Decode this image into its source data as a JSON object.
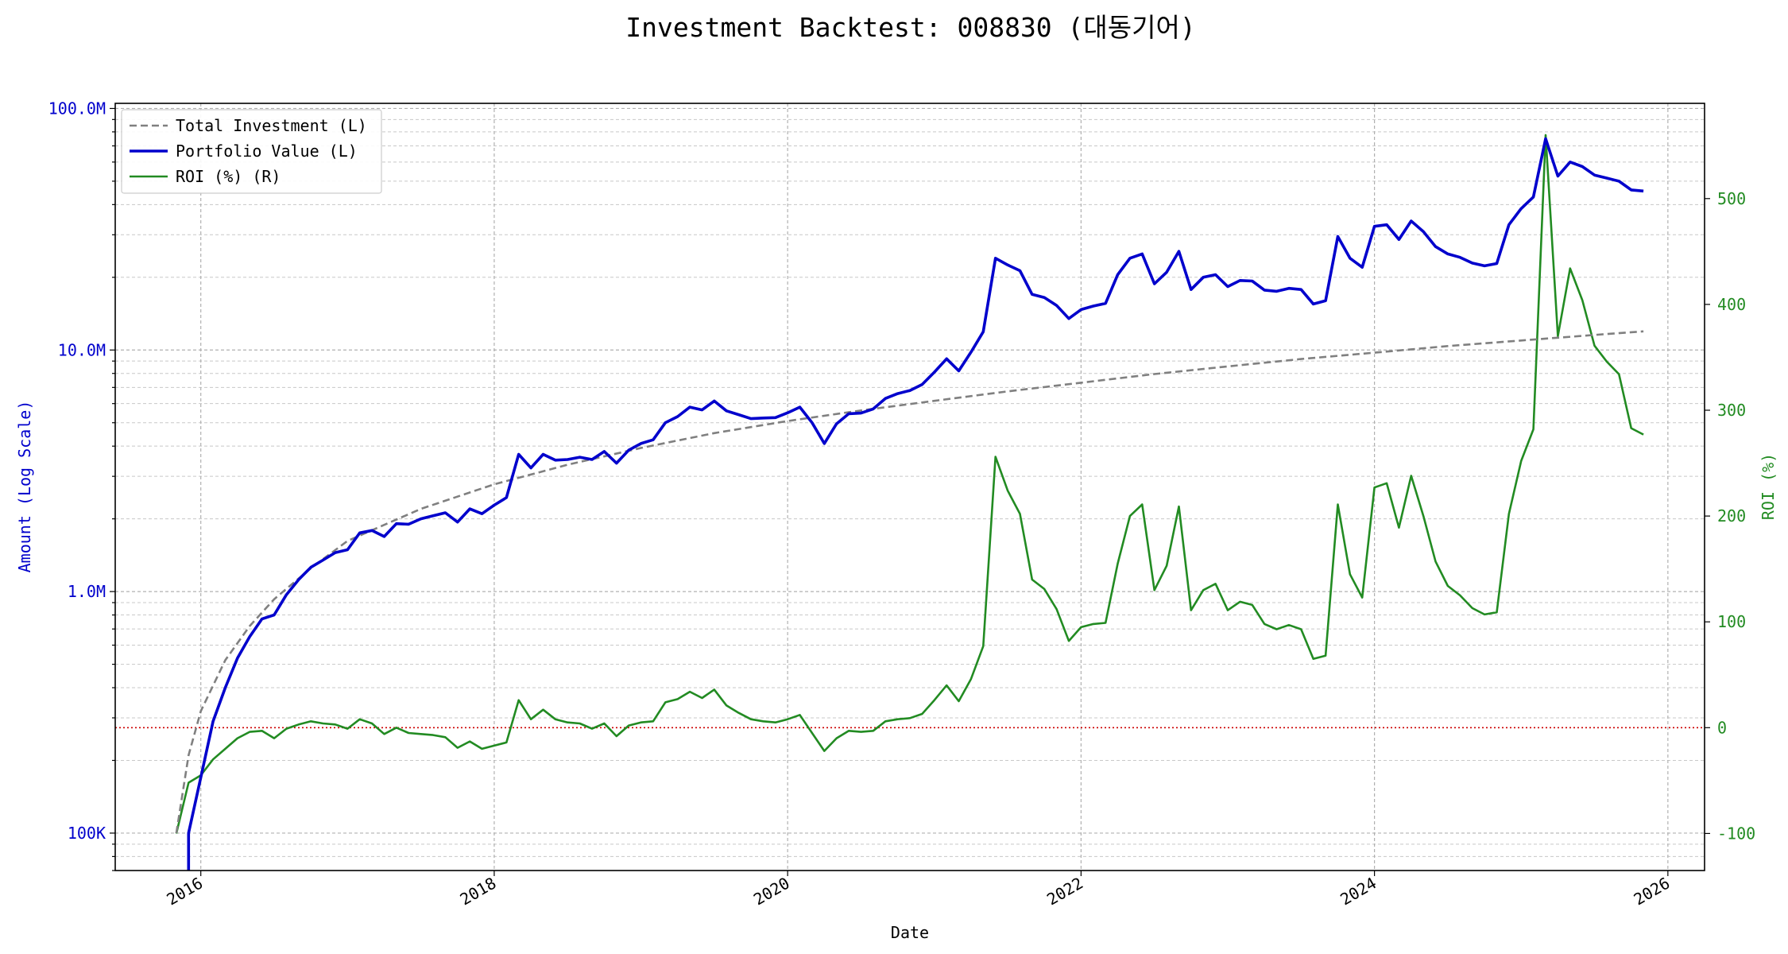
{
  "title": "Investment Backtest: 008830 (대동기어)",
  "chart_data": {
    "type": "line",
    "title": "Investment Backtest: 008830 (대동기어)",
    "xlabel": "Date",
    "ylabel_left": "Amount (Log Scale)",
    "ylabel_right": "ROI (%)",
    "y_left_scale": "log",
    "y_left_lim": [
      70000,
      105000000
    ],
    "y_left_ticks": [
      {
        "value": 100000,
        "label": "100K"
      },
      {
        "value": 1000000,
        "label": "1.0M"
      },
      {
        "value": 10000000,
        "label": "10.0M"
      },
      {
        "value": 100000000,
        "label": "100.0M"
      }
    ],
    "y_right_lim": [
      -135,
      590
    ],
    "y_right_ticks": [
      -100,
      0,
      100,
      200,
      300,
      400,
      500
    ],
    "x_lim": [
      "2015-06-01",
      "2026-04-01"
    ],
    "x_ticks": [
      {
        "value": "2016-01-01",
        "label": "2016"
      },
      {
        "value": "2018-01-01",
        "label": "2018"
      },
      {
        "value": "2020-01-01",
        "label": "2020"
      },
      {
        "value": "2022-01-01",
        "label": "2022"
      },
      {
        "value": "2024-01-01",
        "label": "2024"
      },
      {
        "value": "2026-01-01",
        "label": "2026"
      }
    ],
    "grid": true,
    "legend_position": "upper-left",
    "zero_line": {
      "value": 0,
      "axis": "right",
      "color": "#cc0000",
      "style": "dotted"
    },
    "series": [
      {
        "name": "Total Investment (L)",
        "axis": "left",
        "color": "#808080",
        "style": "dashed",
        "x": [
          "2015-11-01",
          "2015-12-01",
          "2016-01-01",
          "2016-03-01",
          "2016-05-01",
          "2016-07-01",
          "2016-10-01",
          "2017-01-01",
          "2017-07-01",
          "2018-01-01",
          "2018-07-01",
          "2019-01-01",
          "2019-07-01",
          "2020-01-01",
          "2020-07-01",
          "2021-01-01",
          "2021-07-01",
          "2022-01-01",
          "2022-07-01",
          "2023-01-01",
          "2023-07-01",
          "2024-01-01",
          "2024-07-01",
          "2025-01-01",
          "2025-07-01",
          "2025-11-01"
        ],
        "values": [
          100000,
          210000,
          320000,
          520000,
          720000,
          930000,
          1250000,
          1620000,
          2200000,
          2780000,
          3350000,
          3930000,
          4530000,
          5080000,
          5620000,
          6160000,
          6740000,
          7320000,
          7950000,
          8550000,
          9180000,
          9750000,
          10380000,
          10950000,
          11550000,
          11950000
        ]
      },
      {
        "name": "Portfolio Value (L)",
        "axis": "left",
        "color": "#0000cc",
        "style": "solid",
        "x": [
          "2015-12-01",
          "2015-12-01",
          "2016-01-01",
          "2016-02-01",
          "2016-03-01",
          "2016-04-01",
          "2016-05-01",
          "2016-06-01",
          "2016-07-01",
          "2016-08-01",
          "2016-09-01",
          "2016-10-01",
          "2016-11-01",
          "2016-12-01",
          "2017-01-01",
          "2017-02-01",
          "2017-03-01",
          "2017-04-01",
          "2017-05-01",
          "2017-06-01",
          "2017-07-01",
          "2017-08-01",
          "2017-09-01",
          "2017-10-01",
          "2017-11-01",
          "2017-12-01",
          "2018-01-01",
          "2018-02-01",
          "2018-03-01",
          "2018-04-01",
          "2018-05-01",
          "2018-06-01",
          "2018-07-01",
          "2018-08-01",
          "2018-09-01",
          "2018-10-01",
          "2018-11-01",
          "2018-12-01",
          "2019-01-01",
          "2019-02-01",
          "2019-03-01",
          "2019-04-01",
          "2019-05-01",
          "2019-06-01",
          "2019-07-01",
          "2019-08-01",
          "2019-09-01",
          "2019-10-01",
          "2019-11-01",
          "2019-12-01",
          "2020-01-01",
          "2020-02-01",
          "2020-03-01",
          "2020-04-01",
          "2020-05-01",
          "2020-06-01",
          "2020-07-01",
          "2020-08-01",
          "2020-09-01",
          "2020-10-01",
          "2020-11-01",
          "2020-12-01",
          "2021-01-01",
          "2021-02-01",
          "2021-03-01",
          "2021-04-01",
          "2021-05-01",
          "2021-06-01",
          "2021-07-01",
          "2021-08-01",
          "2021-09-01",
          "2021-10-01",
          "2021-11-01",
          "2021-12-01",
          "2022-01-01",
          "2022-02-01",
          "2022-03-01",
          "2022-04-01",
          "2022-05-01",
          "2022-06-01",
          "2022-07-01",
          "2022-08-01",
          "2022-09-01",
          "2022-10-01",
          "2022-11-01",
          "2022-12-01",
          "2023-01-01",
          "2023-02-01",
          "2023-03-01",
          "2023-04-01",
          "2023-05-01",
          "2023-06-01",
          "2023-07-01",
          "2023-08-01",
          "2023-09-01",
          "2023-10-01",
          "2023-11-01",
          "2023-12-01",
          "2024-01-01",
          "2024-02-01",
          "2024-03-01",
          "2024-04-01",
          "2024-05-01",
          "2024-06-01",
          "2024-07-01",
          "2024-08-01",
          "2024-09-01",
          "2024-10-01",
          "2024-11-01",
          "2024-12-01",
          "2025-01-01",
          "2025-02-01",
          "2025-03-01",
          "2025-04-01",
          "2025-05-01",
          "2025-06-01",
          "2025-07-01",
          "2025-08-01",
          "2025-09-01",
          "2025-10-01",
          "2025-11-01"
        ],
        "values": [
          50000,
          100000,
          170000,
          290000,
          400000,
          530000,
          650000,
          770000,
          800000,
          970000,
          1120000,
          1260000,
          1350000,
          1450000,
          1490000,
          1750000,
          1790000,
          1690000,
          1910000,
          1900000,
          2000000,
          2060000,
          2120000,
          1940000,
          2200000,
          2100000,
          2280000,
          2450000,
          3700000,
          3250000,
          3700000,
          3500000,
          3520000,
          3600000,
          3520000,
          3800000,
          3400000,
          3850000,
          4100000,
          4250000,
          5000000,
          5300000,
          5800000,
          5650000,
          6150000,
          5600000,
          5400000,
          5200000,
          5230000,
          5250000,
          5500000,
          5800000,
          5000000,
          4100000,
          4950000,
          5450000,
          5480000,
          5700000,
          6300000,
          6600000,
          6800000,
          7200000,
          8100000,
          9200000,
          8200000,
          9800000,
          11900000,
          24000000,
          22500000,
          21300000,
          17000000,
          16500000,
          15300000,
          13500000,
          14700000,
          15200000,
          15600000,
          20500000,
          24000000,
          25000000,
          18800000,
          21000000,
          25600000,
          17800000,
          20000000,
          20500000,
          18300000,
          19400000,
          19300000,
          17700000,
          17500000,
          18000000,
          17800000,
          15500000,
          16000000,
          29500000,
          24000000,
          22000000,
          32500000,
          33000000,
          28700000,
          34200000,
          30900000,
          26800000,
          25000000,
          24200000,
          22900000,
          22300000,
          22800000,
          33000000,
          38500000,
          43000000,
          75000000,
          52500000,
          60000000,
          57500000,
          53000000,
          51500000,
          50000000,
          46000000,
          45500000
        ]
      },
      {
        "name": "ROI (%) (R)",
        "axis": "right",
        "color": "#228b22",
        "style": "solid",
        "x": [
          "2015-11-01",
          "2015-12-01",
          "2016-01-01",
          "2016-02-01",
          "2016-03-01",
          "2016-04-01",
          "2016-05-01",
          "2016-06-01",
          "2016-07-01",
          "2016-08-01",
          "2016-09-01",
          "2016-10-01",
          "2016-11-01",
          "2016-12-01",
          "2017-01-01",
          "2017-02-01",
          "2017-03-01",
          "2017-04-01",
          "2017-05-01",
          "2017-06-01",
          "2017-07-01",
          "2017-08-01",
          "2017-09-01",
          "2017-10-01",
          "2017-11-01",
          "2017-12-01",
          "2018-01-01",
          "2018-02-01",
          "2018-03-01",
          "2018-04-01",
          "2018-05-01",
          "2018-06-01",
          "2018-07-01",
          "2018-08-01",
          "2018-09-01",
          "2018-10-01",
          "2018-11-01",
          "2018-12-01",
          "2019-01-01",
          "2019-02-01",
          "2019-03-01",
          "2019-04-01",
          "2019-05-01",
          "2019-06-01",
          "2019-07-01",
          "2019-08-01",
          "2019-09-01",
          "2019-10-01",
          "2019-11-01",
          "2019-12-01",
          "2020-01-01",
          "2020-02-01",
          "2020-03-01",
          "2020-04-01",
          "2020-05-01",
          "2020-06-01",
          "2020-07-01",
          "2020-08-01",
          "2020-09-01",
          "2020-10-01",
          "2020-11-01",
          "2020-12-01",
          "2021-01-01",
          "2021-02-01",
          "2021-03-01",
          "2021-04-01",
          "2021-05-01",
          "2021-06-01",
          "2021-07-01",
          "2021-08-01",
          "2021-09-01",
          "2021-10-01",
          "2021-11-01",
          "2021-12-01",
          "2022-01-01",
          "2022-02-01",
          "2022-03-01",
          "2022-04-01",
          "2022-05-01",
          "2022-06-01",
          "2022-07-01",
          "2022-08-01",
          "2022-09-01",
          "2022-10-01",
          "2022-11-01",
          "2022-12-01",
          "2023-01-01",
          "2023-02-01",
          "2023-03-01",
          "2023-04-01",
          "2023-05-01",
          "2023-06-01",
          "2023-07-01",
          "2023-08-01",
          "2023-09-01",
          "2023-10-01",
          "2023-11-01",
          "2023-12-01",
          "2024-01-01",
          "2024-02-01",
          "2024-03-01",
          "2024-04-01",
          "2024-05-01",
          "2024-06-01",
          "2024-07-01",
          "2024-08-01",
          "2024-09-01",
          "2024-10-01",
          "2024-11-01",
          "2024-12-01",
          "2025-01-01",
          "2025-02-01",
          "2025-03-01",
          "2025-04-01",
          "2025-05-01",
          "2025-06-01",
          "2025-07-01",
          "2025-08-01",
          "2025-09-01",
          "2025-10-01",
          "2025-11-01"
        ],
        "values": [
          -100,
          -52,
          -45,
          -30,
          -20,
          -10,
          -4,
          -3,
          -10,
          -1,
          3,
          6,
          4,
          3,
          -1,
          8,
          4,
          -6,
          0,
          -5,
          -6,
          -7,
          -9,
          -19,
          -13,
          -20,
          -17,
          -14,
          26,
          8,
          17,
          8,
          5,
          4,
          -1,
          4,
          -8,
          2,
          5,
          6,
          24,
          27,
          34,
          28,
          36,
          21,
          14,
          8,
          6,
          5,
          8,
          12,
          -5,
          -22,
          -10,
          -3,
          -4,
          -3,
          6,
          8,
          9,
          13,
          26,
          40,
          25,
          46,
          77,
          256,
          224,
          202,
          140,
          131,
          112,
          82,
          95,
          98,
          99,
          155,
          200,
          211,
          130,
          153,
          209,
          111,
          130,
          136,
          111,
          119,
          116,
          98,
          93,
          97,
          93,
          65,
          68,
          211,
          145,
          123,
          227,
          231,
          189,
          238,
          200,
          157,
          134,
          125,
          113,
          107,
          109,
          202,
          252,
          282,
          560,
          370,
          434,
          404,
          361,
          346,
          334,
          283,
          277
        ]
      }
    ]
  }
}
